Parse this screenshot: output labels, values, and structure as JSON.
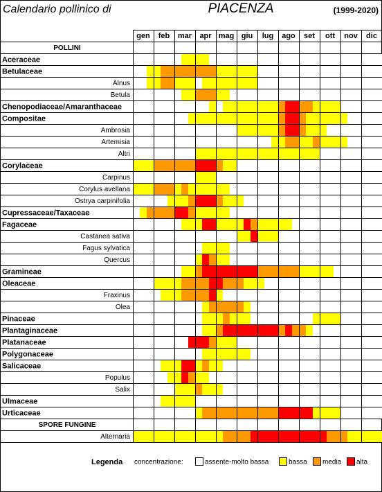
{
  "header": {
    "title": "Calendario pollinico di",
    "city": "PIACENZA",
    "period": "(1999-2020)"
  },
  "table": {
    "months": [
      "gen",
      "feb",
      "mar",
      "apr",
      "mag",
      "giu",
      "lug",
      "ago",
      "set",
      "ott",
      "nov",
      "dic"
    ],
    "rows": [
      {
        "label": "POLLINI",
        "kind": "section"
      },
      {
        "label": "Aceraceae",
        "kind": "family",
        "levels": [
          0,
          0,
          0,
          0,
          0,
          0,
          0,
          1,
          1,
          1,
          1,
          0,
          0,
          0,
          0,
          0,
          0,
          0,
          0,
          0,
          0,
          0,
          0,
          0,
          0,
          0,
          0,
          0,
          0,
          0,
          0,
          0,
          0,
          0,
          0,
          0
        ]
      },
      {
        "label": "Betulaceae",
        "kind": "family",
        "levels": [
          0,
          0,
          1,
          1,
          2,
          2,
          2,
          2,
          2,
          2,
          2,
          2,
          1,
          1,
          1,
          1,
          1,
          1,
          0,
          0,
          0,
          0,
          0,
          0,
          0,
          0,
          0,
          0,
          0,
          0,
          0,
          0,
          0,
          0,
          0,
          0
        ]
      },
      {
        "label": "Alnus",
        "kind": "species",
        "levels": [
          0,
          0,
          1,
          1,
          2,
          2,
          1,
          1,
          1,
          0,
          1,
          1,
          1,
          1,
          1,
          1,
          1,
          1,
          0,
          0,
          0,
          0,
          0,
          0,
          0,
          0,
          0,
          0,
          0,
          0,
          0,
          0,
          0,
          0,
          0,
          0
        ]
      },
      {
        "label": "Betula",
        "kind": "species",
        "levels": [
          0,
          0,
          0,
          0,
          0,
          0,
          0,
          1,
          1,
          2,
          2,
          2,
          1,
          1,
          0,
          0,
          0,
          0,
          0,
          0,
          0,
          0,
          0,
          0,
          0,
          0,
          0,
          0,
          0,
          0,
          0,
          0,
          0,
          0,
          0,
          0
        ]
      },
      {
        "label": "Chenopodiaceae/Amaranthaceae",
        "kind": "family",
        "levels": [
          0,
          0,
          0,
          0,
          0,
          0,
          0,
          0,
          0,
          0,
          0,
          1,
          0,
          1,
          1,
          1,
          1,
          1,
          1,
          1,
          1,
          2,
          3,
          3,
          2,
          2,
          1,
          1,
          1,
          1,
          0,
          0,
          0,
          0,
          0,
          0
        ]
      },
      {
        "label": "Compositae",
        "kind": "family",
        "levels": [
          0,
          0,
          0,
          0,
          0,
          0,
          0,
          0,
          1,
          1,
          1,
          1,
          1,
          1,
          1,
          1,
          1,
          1,
          1,
          1,
          1,
          2,
          3,
          3,
          2,
          1,
          1,
          1,
          1,
          1,
          1,
          0,
          0,
          0,
          0,
          0
        ]
      },
      {
        "label": "Ambrosia",
        "kind": "species",
        "levels": [
          0,
          0,
          0,
          0,
          0,
          0,
          0,
          0,
          0,
          0,
          0,
          0,
          0,
          0,
          0,
          1,
          1,
          1,
          1,
          1,
          1,
          2,
          3,
          3,
          2,
          1,
          1,
          1,
          0,
          0,
          0,
          0,
          0,
          0,
          0,
          0
        ]
      },
      {
        "label": "Artemisia",
        "kind": "species",
        "levels": [
          0,
          0,
          0,
          0,
          0,
          0,
          0,
          0,
          0,
          0,
          0,
          0,
          0,
          0,
          0,
          0,
          0,
          0,
          0,
          0,
          1,
          1,
          2,
          2,
          1,
          1,
          2,
          1,
          1,
          1,
          1,
          0,
          0,
          0,
          0,
          0
        ]
      },
      {
        "label": "Altri",
        "kind": "species",
        "levels": [
          0,
          0,
          0,
          0,
          0,
          0,
          0,
          0,
          0,
          1,
          1,
          1,
          1,
          1,
          1,
          1,
          1,
          1,
          1,
          1,
          1,
          1,
          1,
          1,
          1,
          1,
          1,
          0,
          0,
          0,
          0,
          0,
          0,
          0,
          0,
          0
        ]
      },
      {
        "label": "Corylaceae",
        "kind": "family",
        "levels": [
          1,
          1,
          1,
          2,
          2,
          2,
          2,
          2,
          2,
          3,
          3,
          3,
          2,
          1,
          1,
          0,
          0,
          0,
          0,
          0,
          0,
          0,
          0,
          0,
          0,
          0,
          0,
          0,
          0,
          0,
          0,
          0,
          0,
          0,
          0,
          0
        ]
      },
      {
        "label": "Carpinus",
        "kind": "species",
        "levels": [
          0,
          0,
          0,
          0,
          0,
          0,
          0,
          0,
          0,
          1,
          1,
          1,
          0,
          0,
          0,
          0,
          0,
          0,
          0,
          0,
          0,
          0,
          0,
          0,
          0,
          0,
          0,
          0,
          0,
          0,
          0,
          0,
          0,
          0,
          0,
          0
        ]
      },
      {
        "label": "Corylus avellana",
        "kind": "species",
        "levels": [
          1,
          1,
          1,
          2,
          2,
          2,
          1,
          2,
          1,
          1,
          1,
          1,
          1,
          1,
          0,
          0,
          0,
          0,
          0,
          0,
          0,
          0,
          0,
          0,
          0,
          0,
          0,
          0,
          0,
          0,
          0,
          0,
          0,
          0,
          0,
          0
        ]
      },
      {
        "label": "Ostrya carpinifolia",
        "kind": "species",
        "levels": [
          0,
          0,
          0,
          0,
          0,
          1,
          1,
          1,
          2,
          3,
          3,
          3,
          2,
          1,
          1,
          1,
          0,
          0,
          0,
          0,
          0,
          0,
          0,
          0,
          0,
          0,
          0,
          0,
          0,
          0,
          0,
          0,
          0,
          0,
          0,
          0
        ]
      },
      {
        "label": "Cupressaceae/Taxaceae",
        "kind": "family",
        "levels": [
          0,
          1,
          2,
          2,
          2,
          2,
          3,
          3,
          2,
          1,
          1,
          1,
          1,
          1,
          0,
          0,
          0,
          0,
          0,
          0,
          0,
          0,
          0,
          0,
          0,
          0,
          0,
          0,
          0,
          0,
          0,
          0,
          0,
          0,
          0,
          0
        ]
      },
      {
        "label": "Fagaceae",
        "kind": "family",
        "levels": [
          0,
          0,
          0,
          0,
          0,
          0,
          0,
          1,
          1,
          1,
          3,
          3,
          1,
          1,
          1,
          1,
          3,
          2,
          1,
          1,
          1,
          1,
          1,
          0,
          0,
          0,
          0,
          0,
          0,
          0,
          0,
          0,
          0,
          0,
          0,
          0
        ]
      },
      {
        "label": "Castanea sativa",
        "kind": "species",
        "levels": [
          0,
          0,
          0,
          0,
          0,
          0,
          0,
          0,
          0,
          0,
          0,
          0,
          0,
          0,
          0,
          1,
          1,
          3,
          1,
          1,
          1,
          0,
          0,
          0,
          0,
          0,
          0,
          0,
          0,
          0,
          0,
          0,
          0,
          0,
          0,
          0
        ]
      },
      {
        "label": "Fagus sylvatica",
        "kind": "species",
        "levels": [
          0,
          0,
          0,
          0,
          0,
          0,
          0,
          0,
          0,
          0,
          1,
          1,
          1,
          1,
          0,
          0,
          0,
          0,
          0,
          0,
          0,
          0,
          0,
          0,
          0,
          0,
          0,
          0,
          0,
          0,
          0,
          0,
          0,
          0,
          0,
          0
        ]
      },
      {
        "label": "Quercus",
        "kind": "species",
        "levels": [
          0,
          0,
          0,
          0,
          0,
          0,
          0,
          0,
          0,
          1,
          3,
          2,
          1,
          1,
          0,
          0,
          0,
          0,
          0,
          0,
          0,
          0,
          0,
          0,
          0,
          0,
          0,
          0,
          0,
          0,
          0,
          0,
          0,
          0,
          0,
          0
        ]
      },
      {
        "label": "Gramineae",
        "kind": "family",
        "levels": [
          0,
          0,
          0,
          0,
          0,
          0,
          0,
          1,
          1,
          2,
          3,
          3,
          3,
          3,
          3,
          3,
          3,
          3,
          2,
          2,
          2,
          2,
          2,
          2,
          1,
          1,
          1,
          1,
          1,
          0,
          0,
          0,
          0,
          0,
          0,
          0
        ]
      },
      {
        "label": "Oleaceae",
        "kind": "family",
        "levels": [
          0,
          0,
          0,
          1,
          1,
          1,
          1,
          2,
          2,
          2,
          2,
          3,
          3,
          2,
          2,
          2,
          1,
          1,
          1,
          0,
          0,
          0,
          0,
          0,
          0,
          0,
          0,
          0,
          0,
          0,
          0,
          0,
          0,
          0,
          0,
          0
        ]
      },
      {
        "label": "Fraxinus",
        "kind": "species",
        "levels": [
          0,
          0,
          0,
          0,
          1,
          1,
          1,
          2,
          2,
          2,
          2,
          3,
          1,
          0,
          0,
          0,
          0,
          0,
          0,
          0,
          0,
          0,
          0,
          0,
          0,
          0,
          0,
          0,
          0,
          0,
          0,
          0,
          0,
          0,
          0,
          0
        ]
      },
      {
        "label": "Olea",
        "kind": "species",
        "levels": [
          0,
          0,
          0,
          0,
          0,
          0,
          0,
          0,
          0,
          0,
          1,
          2,
          2,
          2,
          2,
          2,
          1,
          0,
          0,
          0,
          0,
          0,
          0,
          0,
          0,
          0,
          0,
          0,
          0,
          0,
          0,
          0,
          0,
          0,
          0,
          0
        ]
      },
      {
        "label": "Pinaceae",
        "kind": "family",
        "levels": [
          0,
          0,
          0,
          0,
          0,
          0,
          0,
          0,
          0,
          0,
          1,
          1,
          1,
          2,
          1,
          1,
          1,
          0,
          0,
          0,
          0,
          0,
          0,
          0,
          0,
          0,
          1,
          1,
          1,
          1,
          0,
          0,
          0,
          0,
          0,
          0
        ]
      },
      {
        "label": "Plantaginaceae",
        "kind": "family",
        "levels": [
          0,
          0,
          0,
          0,
          0,
          0,
          0,
          0,
          0,
          0,
          1,
          1,
          2,
          3,
          3,
          3,
          3,
          3,
          3,
          3,
          3,
          2,
          3,
          2,
          2,
          1,
          0,
          0,
          0,
          0,
          0,
          0,
          0,
          0,
          0,
          0
        ]
      },
      {
        "label": "Platanaceae",
        "kind": "family",
        "levels": [
          0,
          0,
          0,
          0,
          0,
          0,
          0,
          0,
          3,
          3,
          3,
          2,
          1,
          1,
          1,
          0,
          0,
          0,
          0,
          0,
          0,
          0,
          0,
          0,
          0,
          0,
          0,
          0,
          0,
          0,
          0,
          0,
          0,
          0,
          0,
          0
        ]
      },
      {
        "label": "Polygonaceae",
        "kind": "family",
        "levels": [
          0,
          0,
          0,
          0,
          0,
          0,
          0,
          0,
          0,
          0,
          1,
          1,
          1,
          1,
          1,
          1,
          1,
          0,
          0,
          0,
          0,
          0,
          0,
          0,
          0,
          0,
          0,
          0,
          0,
          0,
          0,
          0,
          0,
          0,
          0,
          0
        ]
      },
      {
        "label": "Salicaceae",
        "kind": "family",
        "levels": [
          0,
          0,
          0,
          0,
          1,
          1,
          1,
          3,
          3,
          1,
          2,
          1,
          1,
          0,
          0,
          0,
          0,
          0,
          0,
          0,
          0,
          0,
          0,
          0,
          0,
          0,
          0,
          0,
          0,
          0,
          0,
          0,
          0,
          0,
          0,
          0
        ]
      },
      {
        "label": "Populus",
        "kind": "species",
        "levels": [
          0,
          0,
          0,
          0,
          0,
          1,
          1,
          3,
          2,
          1,
          1,
          0,
          0,
          0,
          0,
          0,
          0,
          0,
          0,
          0,
          0,
          0,
          0,
          0,
          0,
          0,
          0,
          0,
          0,
          0,
          0,
          0,
          0,
          0,
          0,
          0
        ]
      },
      {
        "label": "Salix",
        "kind": "species",
        "levels": [
          0,
          0,
          0,
          0,
          0,
          0,
          1,
          1,
          1,
          2,
          1,
          1,
          1,
          0,
          0,
          0,
          0,
          0,
          0,
          0,
          0,
          0,
          0,
          0,
          0,
          0,
          0,
          0,
          0,
          0,
          0,
          0,
          0,
          0,
          0,
          0
        ]
      },
      {
        "label": "Ulmaceae",
        "kind": "family",
        "levels": [
          0,
          0,
          0,
          0,
          1,
          1,
          1,
          1,
          1,
          0,
          0,
          0,
          0,
          0,
          0,
          0,
          0,
          0,
          0,
          0,
          0,
          0,
          0,
          0,
          0,
          0,
          0,
          0,
          0,
          0,
          0,
          0,
          0,
          0,
          0,
          0
        ]
      },
      {
        "label": "Urticaceae",
        "kind": "family",
        "levels": [
          0,
          0,
          0,
          0,
          0,
          0,
          0,
          0,
          0,
          1,
          2,
          2,
          2,
          2,
          2,
          2,
          2,
          2,
          2,
          2,
          2,
          3,
          3,
          3,
          3,
          3,
          1,
          1,
          1,
          1,
          0,
          0,
          0,
          0,
          0,
          0
        ]
      },
      {
        "label": "SPORE FUNGINE",
        "kind": "section"
      },
      {
        "label": "Alternaria",
        "kind": "species",
        "levels": [
          1,
          1,
          1,
          1,
          1,
          1,
          1,
          1,
          1,
          1,
          1,
          1,
          1,
          2,
          2,
          2,
          2,
          3,
          3,
          3,
          3,
          3,
          3,
          3,
          3,
          3,
          3,
          3,
          2,
          2,
          2,
          1,
          1,
          1,
          1,
          1
        ]
      }
    ]
  },
  "legend": {
    "title": "Legenda",
    "caption": "concentrazione:",
    "items": [
      {
        "label": "assente-molto bassa",
        "color": "#ffffff"
      },
      {
        "label": "bassa",
        "color": "#ffff00"
      },
      {
        "label": "media",
        "color": "#ff9900"
      },
      {
        "label": "alta",
        "color": "#ff0000"
      }
    ]
  }
}
